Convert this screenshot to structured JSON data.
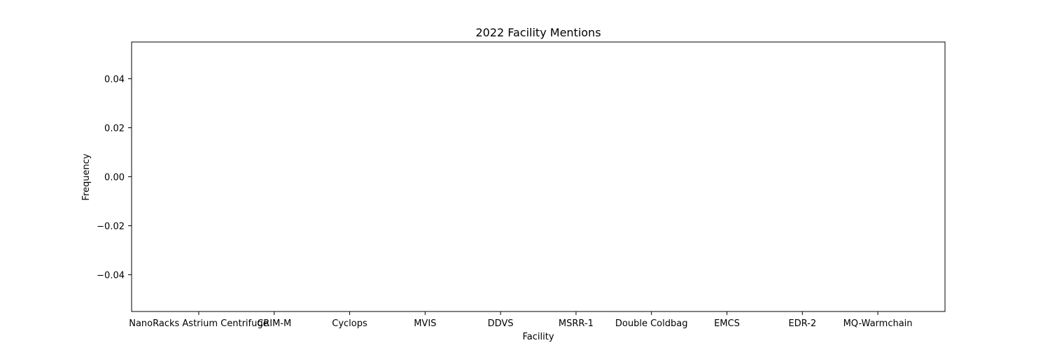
{
  "chart_data": {
    "type": "bar",
    "title": "2022 Facility Mentions",
    "xlabel": "Facility",
    "ylabel": "Frequency",
    "categories": [
      "NanoRacks Astrium Centrifuge",
      "CRIM-M",
      "Cyclops",
      "MVIS",
      "DDVS",
      "MSRR-1",
      "Double Coldbag",
      "EMCS",
      "EDR-2",
      "MQ-Warmchain"
    ],
    "values": [
      0,
      0,
      0,
      0,
      0,
      0,
      0,
      0,
      0,
      0
    ],
    "ylim": [
      -0.055,
      0.055
    ],
    "yticks": [
      0.04,
      0.02,
      0.0,
      -0.02,
      -0.04
    ],
    "ytick_labels": [
      "0.04",
      "0.02",
      "0.00",
      "−0.02",
      "−0.04"
    ],
    "grid": false,
    "colors": {
      "axis": "#000000",
      "background": "#ffffff",
      "bar": "#1f77b4"
    }
  }
}
